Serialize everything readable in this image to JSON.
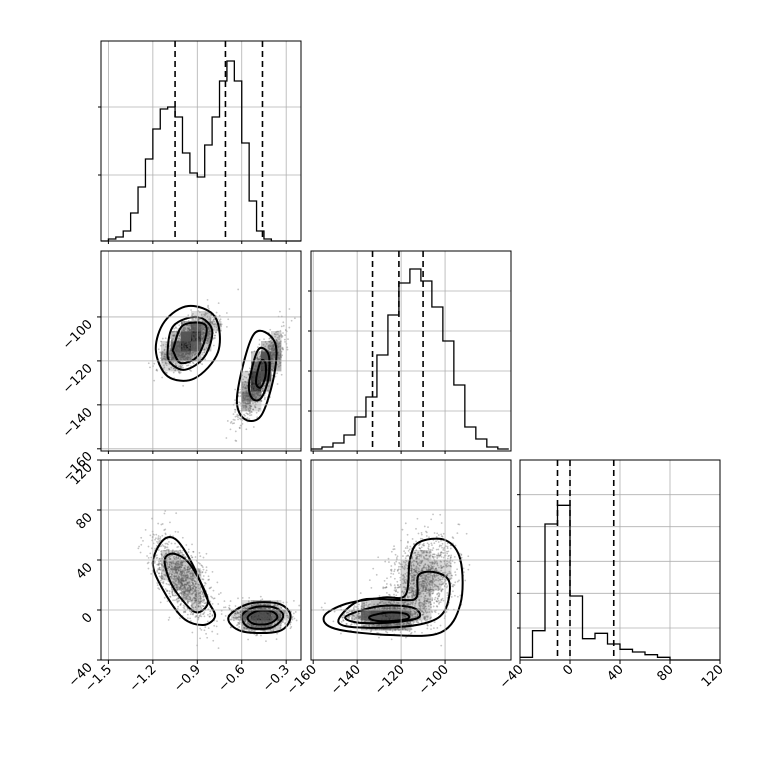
{
  "chart_data": {
    "type": "corner",
    "parameters": [
      {
        "id": "p1",
        "range": [
          -1.55,
          -0.2
        ],
        "ticks": [
          -1.5,
          -1.2,
          -0.9,
          -0.6,
          -0.3
        ],
        "tick_labels": [
          "−1.5",
          "−1.2",
          "−0.9",
          "−0.6",
          "−0.3"
        ]
      },
      {
        "id": "p2",
        "range": [
          -161,
          -70
        ],
        "ticks": [
          -160,
          -140,
          -120,
          -100
        ],
        "tick_labels": [
          "−160",
          "−140",
          "−120",
          "−100"
        ]
      },
      {
        "id": "p3",
        "range": [
          -40,
          120
        ],
        "ticks": [
          -40,
          0,
          40,
          80,
          120
        ],
        "tick_labels": [
          "−40",
          "0",
          "40",
          "80",
          "120"
        ]
      }
    ],
    "marginals": [
      {
        "param": 0,
        "bin_edges": [
          -1.55,
          -1.5,
          -1.45,
          -1.4,
          -1.35,
          -1.3,
          -1.25,
          -1.2,
          -1.15,
          -1.1,
          -1.05,
          -1.0,
          -0.95,
          -0.9,
          -0.85,
          -0.8,
          -0.75,
          -0.7,
          -0.65,
          -0.6,
          -0.55,
          -0.5,
          -0.45,
          -0.4,
          -0.35,
          -0.3,
          -0.25,
          -0.2
        ],
        "counts": [
          0,
          0.01,
          0.02,
          0.05,
          0.14,
          0.27,
          0.41,
          0.56,
          0.66,
          0.67,
          0.62,
          0.44,
          0.34,
          0.32,
          0.48,
          0.62,
          0.8,
          0.9,
          0.8,
          0.49,
          0.2,
          0.05,
          0.01,
          0,
          0,
          0,
          0
        ],
        "quantiles": [
          -1.05,
          -0.71,
          -0.46
        ],
        "ylim": [
          0,
          1.0
        ],
        "yticks": [
          0.33,
          0.67
        ]
      },
      {
        "param": 1,
        "bin_edges": [
          -161,
          -156,
          -151,
          -146,
          -141,
          -136,
          -131,
          -126,
          -121,
          -116,
          -111,
          -106,
          -101,
          -96,
          -91,
          -86,
          -81,
          -76,
          -71
        ],
        "counts": [
          0.01,
          0.02,
          0.04,
          0.08,
          0.17,
          0.27,
          0.48,
          0.68,
          0.84,
          0.91,
          0.85,
          0.72,
          0.55,
          0.33,
          0.12,
          0.06,
          0.02,
          0.01
        ],
        "quantiles": [
          -133,
          -121,
          -110
        ],
        "ylim": [
          0,
          1.0
        ],
        "yticks": [
          0.2,
          0.4,
          0.6,
          0.8
        ]
      },
      {
        "param": 2,
        "bin_edges": [
          -40,
          -30,
          -20,
          -10,
          0,
          10,
          20,
          30,
          40,
          50,
          60,
          70,
          80,
          90,
          100,
          110,
          120
        ],
        "counts": [
          0.01,
          0.11,
          0.51,
          0.58,
          0.24,
          0.08,
          0.1,
          0.06,
          0.04,
          0.03,
          0.02,
          0.01,
          0,
          0,
          0,
          0
        ],
        "quantiles": [
          -10,
          0,
          35
        ],
        "ylim": [
          0,
          0.75
        ],
        "yticks": [
          0.12,
          0.25,
          0.37,
          0.5,
          0.62
        ]
      }
    ],
    "joint": [
      {
        "x_param": 0,
        "y_param": 1,
        "clusters": [
          {
            "center": [
              -0.95,
              -111
            ],
            "spread": [
              0.09,
              6
            ],
            "rho": 0.6,
            "weight": 0.5
          },
          {
            "center": [
              -0.47,
              -126
            ],
            "spread": [
              0.07,
              9
            ],
            "rho": 0.8,
            "weight": 0.5
          }
        ],
        "contours": [
          [
            [
              -1.06,
              -114
            ],
            [
              -1.0,
              -104
            ],
            [
              -0.86,
              -103
            ],
            [
              -0.84,
              -108
            ],
            [
              -0.9,
              -118
            ],
            [
              -1.01,
              -121
            ],
            [
              -1.06,
              -116
            ]
          ],
          [
            [
              -1.1,
              -115
            ],
            [
              -1.06,
              -104
            ],
            [
              -0.9,
              -100
            ],
            [
              -0.8,
              -106
            ],
            [
              -0.85,
              -118
            ],
            [
              -0.98,
              -124
            ],
            [
              -1.08,
              -121
            ]
          ],
          [
            [
              -1.18,
              -115
            ],
            [
              -1.12,
              -102
            ],
            [
              -0.96,
              -95
            ],
            [
              -0.78,
              -100
            ],
            [
              -0.76,
              -116
            ],
            [
              -0.92,
              -128
            ],
            [
              -1.1,
              -127
            ]
          ],
          [
            [
              -0.5,
              -127
            ],
            [
              -0.47,
              -120
            ],
            [
              -0.44,
              -121
            ],
            [
              -0.44,
              -127
            ],
            [
              -0.47,
              -132
            ],
            [
              -0.5,
              -131
            ]
          ],
          [
            [
              -0.55,
              -130
            ],
            [
              -0.49,
              -115
            ],
            [
              -0.42,
              -117
            ],
            [
              -0.42,
              -128
            ],
            [
              -0.47,
              -137
            ],
            [
              -0.53,
              -137
            ]
          ],
          [
            [
              -0.63,
              -135
            ],
            [
              -0.52,
              -108
            ],
            [
              -0.38,
              -111
            ],
            [
              -0.38,
              -126
            ],
            [
              -0.47,
              -145
            ],
            [
              -0.59,
              -146
            ]
          ]
        ]
      },
      {
        "x_param": 0,
        "y_param": 2,
        "clusters": [
          {
            "center": [
              -1.0,
              25
            ],
            "spread": [
              0.1,
              16
            ],
            "rho": -0.6,
            "weight": 0.45
          },
          {
            "center": [
              -0.47,
              -5
            ],
            "spread": [
              0.08,
              5
            ],
            "rho": 0,
            "weight": 0.55
          }
        ],
        "contours": [
          [
            [
              -1.12,
              40
            ],
            [
              -1.06,
              45
            ],
            [
              -0.96,
              38
            ],
            [
              -0.86,
              18
            ],
            [
              -0.83,
              5
            ],
            [
              -0.9,
              -2
            ],
            [
              -0.98,
              5
            ],
            [
              -1.08,
              22
            ]
          ],
          [
            [
              -1.2,
              38
            ],
            [
              -1.13,
              56
            ],
            [
              -1.04,
              56
            ],
            [
              -0.93,
              36
            ],
            [
              -0.83,
              8
            ],
            [
              -0.78,
              -5
            ],
            [
              -0.86,
              -12
            ],
            [
              -1.0,
              -6
            ],
            [
              -1.14,
              18
            ]
          ],
          [
            [
              -0.56,
              -6
            ],
            [
              -0.5,
              -1
            ],
            [
              -0.4,
              -1
            ],
            [
              -0.36,
              -6
            ],
            [
              -0.42,
              -11
            ],
            [
              -0.52,
              -11
            ]
          ],
          [
            [
              -0.6,
              -5
            ],
            [
              -0.52,
              2
            ],
            [
              -0.38,
              2
            ],
            [
              -0.32,
              -5
            ],
            [
              -0.4,
              -14
            ],
            [
              -0.55,
              -14
            ]
          ],
          [
            [
              -0.69,
              -6
            ],
            [
              -0.55,
              5
            ],
            [
              -0.35,
              5
            ],
            [
              -0.27,
              -5
            ],
            [
              -0.35,
              -17
            ],
            [
              -0.6,
              -17
            ]
          ]
        ]
      },
      {
        "x_param": 1,
        "y_param": 2,
        "clusters": [
          {
            "center": [
              -127,
              -5
            ],
            "spread": [
              8,
              5
            ],
            "rho": 0,
            "weight": 0.55
          },
          {
            "center": [
              -110,
              25
            ],
            "spread": [
              8,
              17
            ],
            "rho": 0.3,
            "weight": 0.45
          }
        ],
        "contours": [
          [
            [
              -134,
              -5
            ],
            [
              -126,
              -2
            ],
            [
              -118,
              -3
            ],
            [
              -117,
              -7
            ],
            [
              -126,
              -9
            ],
            [
              -133,
              -8
            ]
          ],
          [
            [
              -145,
              -5
            ],
            [
              -130,
              3
            ],
            [
              -115,
              2
            ],
            [
              -112,
              -6
            ],
            [
              -125,
              -10
            ],
            [
              -140,
              -10
            ]
          ],
          [
            [
              -148,
              -6
            ],
            [
              -138,
              8
            ],
            [
              -120,
              8
            ],
            [
              -113,
              10
            ],
            [
              -112,
              28
            ],
            [
              -104,
              30
            ],
            [
              -98,
              22
            ],
            [
              -100,
              0
            ],
            [
              -108,
              -10
            ],
            [
              -125,
              -14
            ],
            [
              -145,
              -13
            ]
          ],
          [
            [
              -155,
              -5
            ],
            [
              -145,
              5
            ],
            [
              -128,
              10
            ],
            [
              -118,
              12
            ],
            [
              -116,
              40
            ],
            [
              -112,
              54
            ],
            [
              -100,
              56
            ],
            [
              -93,
              40
            ],
            [
              -93,
              5
            ],
            [
              -102,
              -18
            ],
            [
              -125,
              -20
            ],
            [
              -150,
              -15
            ]
          ]
        ]
      }
    ]
  }
}
